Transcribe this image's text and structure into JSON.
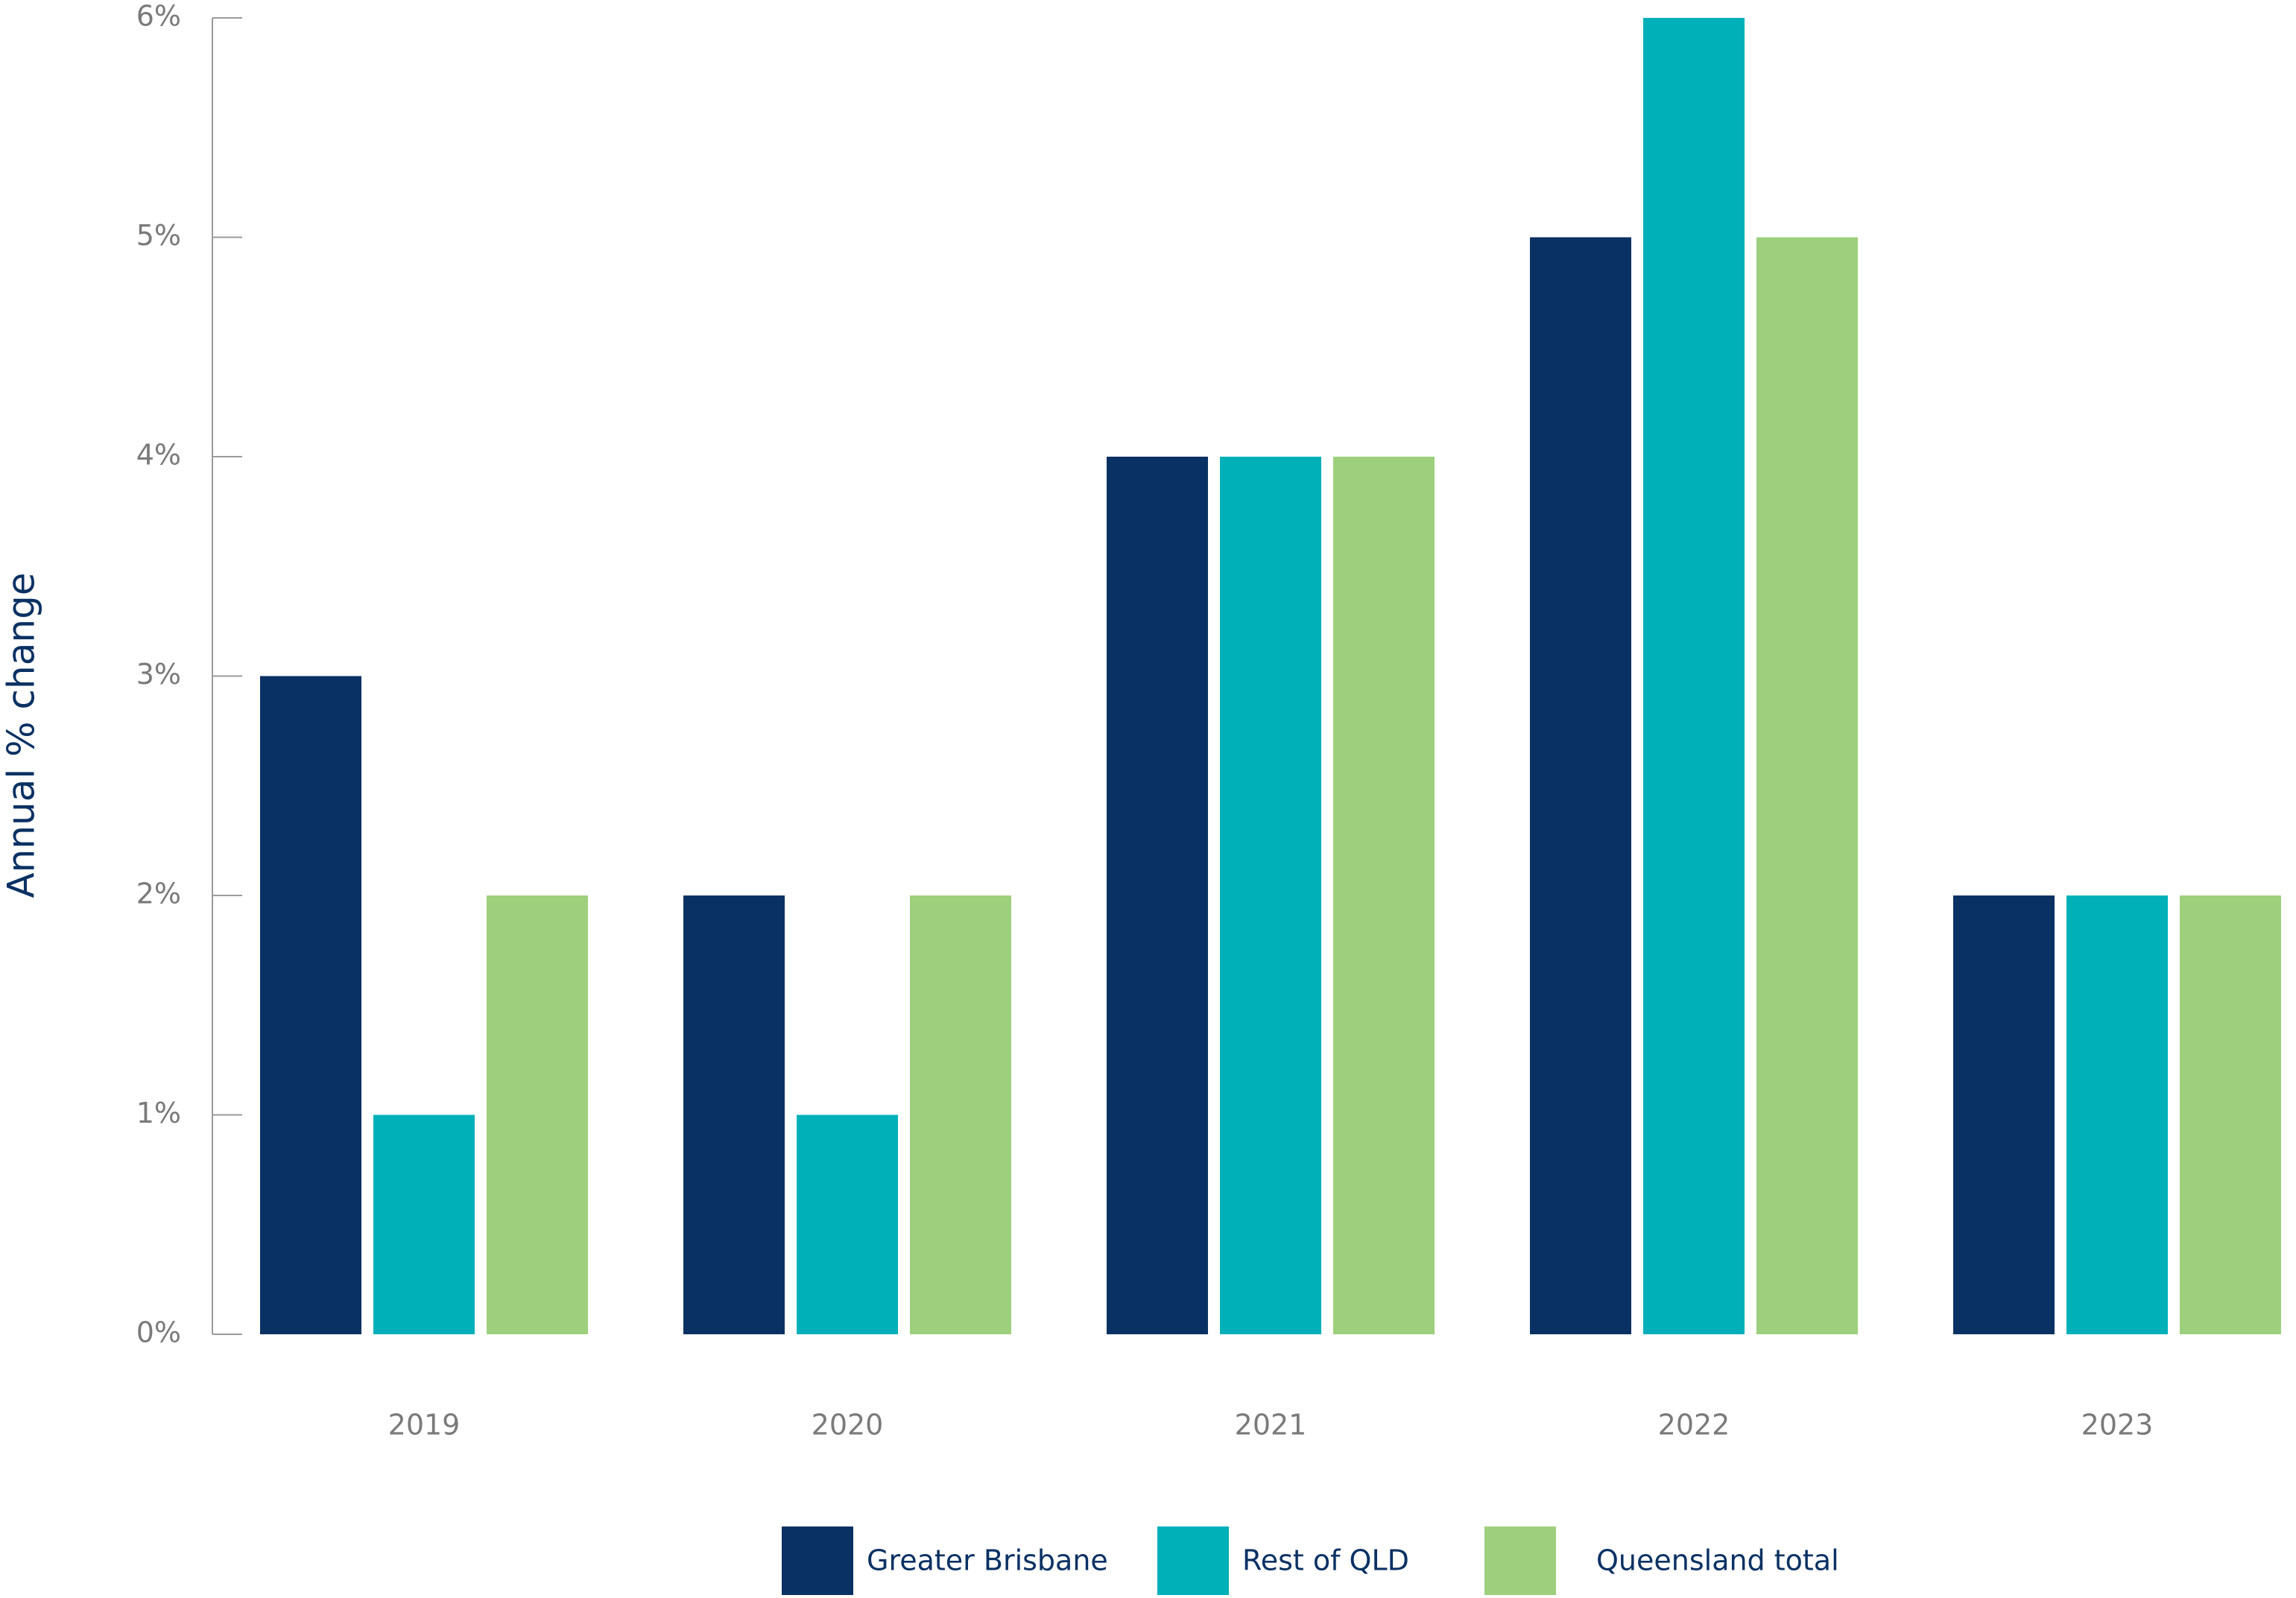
{
  "chart_data": {
    "type": "bar",
    "y_label": "Annual % change",
    "categories": [
      "2019",
      "2020",
      "2021",
      "2022",
      "2023"
    ],
    "series": [
      {
        "name": "Greater Brisbane",
        "color": "#0a3163",
        "values": [
          3,
          2,
          4,
          5,
          2
        ]
      },
      {
        "name": "Rest of QLD",
        "color": "#00b0b9",
        "values": [
          1,
          1,
          4,
          6,
          2
        ]
      },
      {
        "name": "Queensland total",
        "color": "#9dcf7c",
        "values": [
          2,
          2,
          4,
          5,
          2
        ]
      }
    ],
    "ylim": [
      0,
      6
    ],
    "yticks": [
      {
        "value": 0,
        "label": "0%"
      },
      {
        "value": 1,
        "label": "1%"
      },
      {
        "value": 2,
        "label": "2%"
      },
      {
        "value": 3,
        "label": "3%"
      },
      {
        "value": 4,
        "label": "4%"
      },
      {
        "value": 5,
        "label": "5%"
      },
      {
        "value": 6,
        "label": "6%"
      }
    ],
    "grid": false,
    "legend": "bottom"
  }
}
